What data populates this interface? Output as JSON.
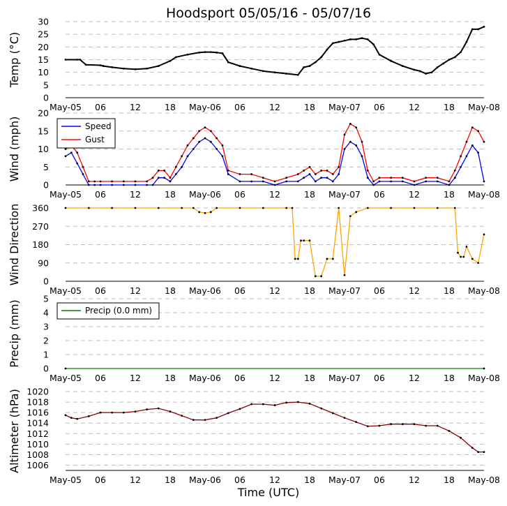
{
  "chart_data": {
    "type": "line",
    "title": "Hoodsport 05/05/16 - 05/07/16",
    "xlabel": "Time (UTC)",
    "x_range_hours": [
      0,
      72
    ],
    "x_ticks": [
      {
        "h": 0,
        "label": "May-05"
      },
      {
        "h": 6,
        "label": "06"
      },
      {
        "h": 12,
        "label": "12"
      },
      {
        "h": 18,
        "label": "18"
      },
      {
        "h": 24,
        "label": "May-06"
      },
      {
        "h": 30,
        "label": "06"
      },
      {
        "h": 36,
        "label": "12"
      },
      {
        "h": 42,
        "label": "18"
      },
      {
        "h": 48,
        "label": "May-07"
      },
      {
        "h": 54,
        "label": "06"
      },
      {
        "h": 60,
        "label": "12"
      },
      {
        "h": 66,
        "label": "18"
      },
      {
        "h": 72,
        "label": "May-08"
      }
    ],
    "panels": [
      {
        "id": "temp",
        "ylabel": "Temp (°C)",
        "ylim": [
          0,
          30
        ],
        "yticks": [
          0,
          5,
          10,
          15,
          20,
          25,
          30
        ],
        "series": [
          {
            "name": "Temp",
            "color": "#000000",
            "x": [
              0,
              2,
              2.5,
              3.5,
              6,
              6.5,
              8,
              10,
              12,
              14,
              16,
              18,
              19,
              21,
              23,
              24,
              25,
              26,
              27,
              28,
              30,
              32,
              34,
              36,
              38,
              40,
              41,
              42,
              43,
              44,
              45,
              46,
              47,
              48,
              49,
              50,
              51,
              52,
              53,
              54,
              56,
              58,
              60,
              61,
              62,
              63,
              64,
              65,
              66,
              67,
              68,
              69,
              70,
              71,
              72
            ],
            "values": [
              15,
              15,
              15,
              13,
              12.8,
              12.5,
              12,
              11.5,
              11.2,
              11.5,
              12.5,
              14.5,
              16,
              17,
              17.8,
              18,
              18,
              17.8,
              17.5,
              14,
              12.5,
              11.5,
              10.5,
              10,
              9.5,
              9,
              12,
              12.5,
              14,
              16,
              19,
              21.5,
              22,
              22.5,
              23,
              23,
              23.5,
              23,
              21,
              17,
              14.5,
              12.5,
              11,
              10.5,
              9.5,
              10,
              12,
              13.5,
              15,
              16,
              18,
              22,
              27,
              27,
              28
            ]
          }
        ]
      },
      {
        "id": "wind",
        "ylabel": "Wind (mph)",
        "ylim": [
          0,
          20
        ],
        "yticks": [
          0,
          5,
          10,
          15,
          20
        ],
        "legend": [
          {
            "name": "Speed",
            "color": "#0000ff"
          },
          {
            "name": "Gust",
            "color": "#ff0000"
          }
        ],
        "series": [
          {
            "name": "Speed",
            "color": "#0000ff",
            "x": [
              0,
              1,
              2,
              3,
              4,
              5,
              6,
              8,
              10,
              12,
              14,
              15,
              16,
              17,
              18,
              19,
              20,
              21,
              22,
              23,
              24,
              25,
              26,
              27,
              28,
              30,
              32,
              34,
              36,
              38,
              40,
              41,
              42,
              43,
              44,
              45,
              46,
              47,
              48,
              49,
              50,
              51,
              52,
              53,
              54,
              56,
              58,
              60,
              62,
              64,
              66,
              67,
              68,
              69,
              70,
              71,
              72
            ],
            "values": [
              8,
              9,
              6,
              3,
              0,
              0,
              0,
              0,
              0,
              0,
              0,
              0,
              2,
              2,
              1,
              3,
              5,
              8,
              10,
              12,
              13,
              12,
              10,
              8,
              3,
              1,
              1,
              1,
              0,
              1,
              1,
              2,
              3,
              1,
              2,
              2,
              1,
              3,
              10,
              12,
              11,
              8,
              2,
              0,
              1,
              1,
              1,
              0,
              1,
              1,
              0,
              2,
              5,
              8,
              11,
              9,
              1
            ]
          },
          {
            "name": "Gust",
            "color": "#ff0000",
            "x": [
              0,
              1,
              2,
              3,
              4,
              5,
              6,
              8,
              10,
              12,
              14,
              15,
              16,
              17,
              18,
              19,
              20,
              21,
              22,
              23,
              24,
              25,
              26,
              27,
              28,
              30,
              32,
              34,
              36,
              38,
              40,
              41,
              42,
              43,
              44,
              45,
              46,
              47,
              48,
              49,
              50,
              51,
              52,
              53,
              54,
              56,
              58,
              60,
              62,
              64,
              66,
              67,
              68,
              69,
              70,
              71,
              72
            ],
            "values": [
              10,
              11,
              9,
              5,
              1,
              1,
              1,
              1,
              1,
              1,
              1,
              2,
              4,
              4,
              2,
              5,
              8,
              11,
              13,
              15,
              16,
              15,
              13,
              11,
              4,
              3,
              3,
              2,
              1,
              2,
              3,
              4,
              5,
              3,
              4,
              4,
              3,
              5,
              14,
              17,
              16,
              12,
              4,
              1,
              2,
              2,
              2,
              1,
              2,
              2,
              1,
              4,
              8,
              12,
              16,
              15,
              12
            ]
          }
        ]
      },
      {
        "id": "direction",
        "ylabel": "Wind Direction",
        "ylim": [
          0,
          360
        ],
        "yticks": [
          0,
          90,
          180,
          270,
          360
        ],
        "series": [
          {
            "name": "Direction",
            "color": "#ffa500",
            "x": [
              0,
              4,
              8,
              12,
              16,
              20,
              22,
              23,
              24,
              25,
              26,
              30,
              34,
              38,
              39,
              39.5,
              40,
              40.5,
              41,
              42,
              43,
              44,
              45,
              46,
              47,
              48,
              49,
              50,
              52,
              56,
              60,
              64,
              67,
              67.5,
              68,
              68.5,
              69,
              70,
              71,
              72
            ],
            "values": [
              360,
              360,
              360,
              360,
              360,
              360,
              360,
              340,
              335,
              340,
              360,
              360,
              360,
              360,
              360,
              110,
              110,
              200,
              200,
              200,
              25,
              25,
              110,
              110,
              360,
              30,
              320,
              340,
              360,
              360,
              360,
              360,
              360,
              140,
              120,
              120,
              170,
              110,
              90,
              230
            ]
          }
        ]
      },
      {
        "id": "precip",
        "ylabel": "Precip (mm)",
        "ylim": [
          0,
          5
        ],
        "yticks": [
          0,
          1,
          2,
          3,
          4,
          5
        ],
        "legend": [
          {
            "name": "Precip (0.0 mm)",
            "color": "#008000"
          }
        ],
        "series": [
          {
            "name": "Precip (0.0 mm)",
            "color": "#008000",
            "x": [
              0,
              72
            ],
            "values": [
              0,
              0
            ]
          }
        ]
      },
      {
        "id": "altimeter",
        "ylabel": "Altimeter (hPa)",
        "ylim": [
          1005,
          1020
        ],
        "yticks": [
          1006,
          1008,
          1010,
          1012,
          1014,
          1016,
          1018,
          1020
        ],
        "series": [
          {
            "name": "Altimeter",
            "color": "#8b0000",
            "x": [
              0,
              1,
              2,
              4,
              6,
              8,
              10,
              12,
              14,
              16,
              18,
              20,
              22,
              24,
              26,
              28,
              30,
              32,
              34,
              36,
              38,
              40,
              42,
              44,
              46,
              48,
              50,
              52,
              54,
              56,
              58,
              60,
              62,
              64,
              66,
              68,
              70,
              71,
              72
            ],
            "values": [
              1015.5,
              1015,
              1014.8,
              1015.3,
              1016,
              1016,
              1016,
              1016.2,
              1016.6,
              1016.8,
              1016.2,
              1015.4,
              1014.6,
              1014.6,
              1015,
              1015.9,
              1016.7,
              1017.6,
              1017.6,
              1017.4,
              1017.9,
              1018,
              1017.7,
              1016.8,
              1015.9,
              1015,
              1014.2,
              1013.4,
              1013.5,
              1013.8,
              1013.8,
              1013.8,
              1013.5,
              1013.5,
              1012.5,
              1011.2,
              1009.3,
              1008.5,
              1008.5
            ]
          }
        ]
      }
    ]
  }
}
